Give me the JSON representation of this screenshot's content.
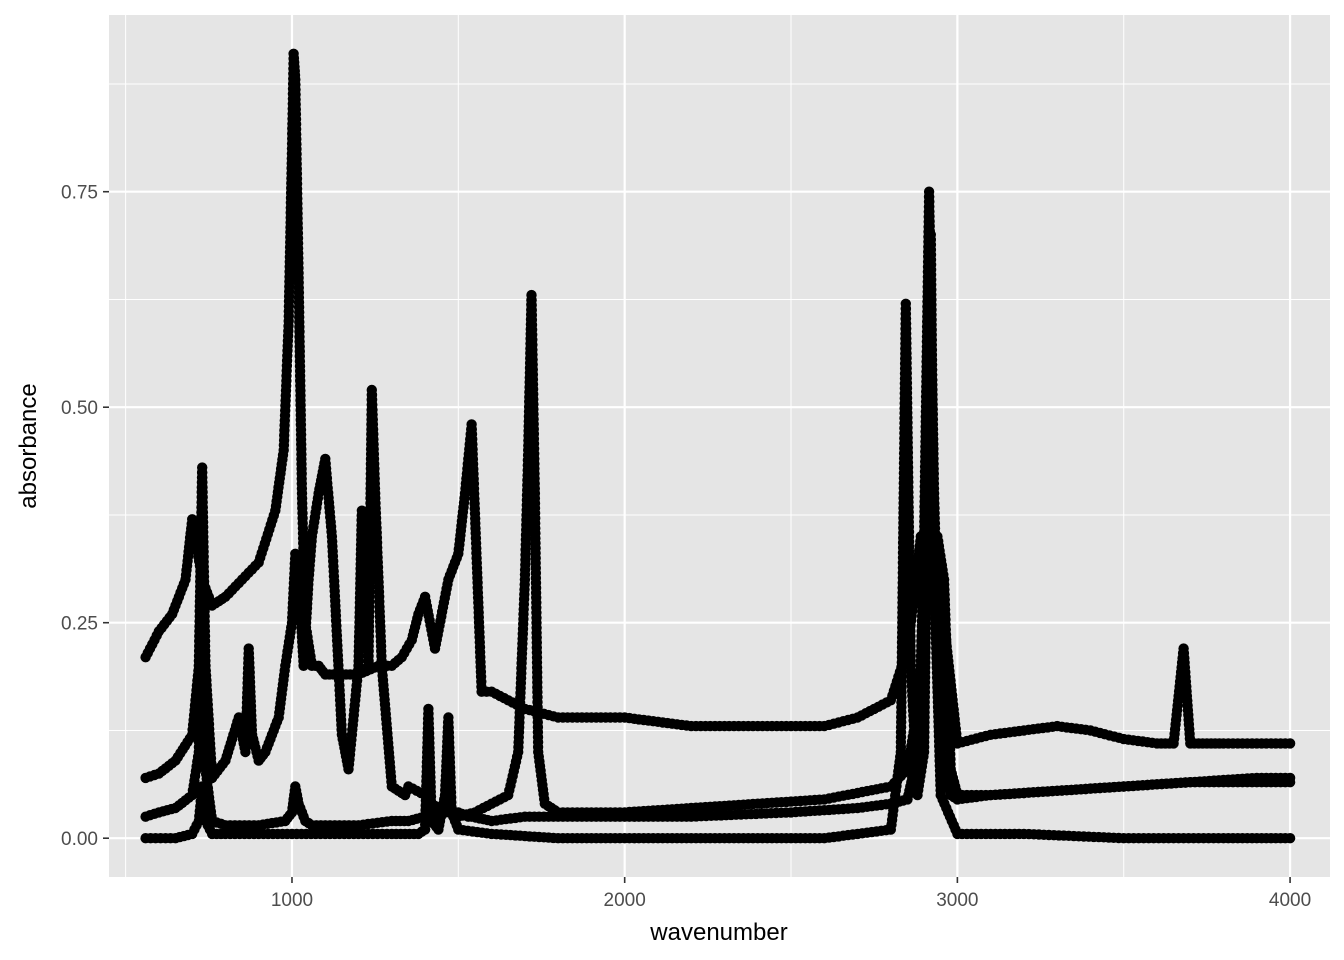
{
  "chart_data": {
    "type": "scatter",
    "title": "",
    "xlabel": "wavenumber",
    "ylabel": "absorbance",
    "xlim": [
      450,
      4120
    ],
    "ylim": [
      -0.045,
      0.955
    ],
    "x_ticks": [
      1000,
      2000,
      3000,
      4000
    ],
    "x_tick_labels": [
      "1000",
      "2000",
      "3000",
      "4000"
    ],
    "y_ticks": [
      0.0,
      0.25,
      0.5,
      0.75
    ],
    "y_tick_labels": [
      "0.00",
      "0.25",
      "0.50",
      "0.75"
    ],
    "grid": true,
    "legend": "none",
    "panel_color": "#e5e5e5",
    "grid_color": "#ffffff",
    "point_color": "#000000",
    "series": [
      {
        "x": [
          560,
          600,
          640,
          680,
          700,
          730,
          760,
          800,
          850,
          900,
          950,
          975,
          990,
          1000,
          1005,
          1010,
          1020,
          1030,
          1040,
          1060,
          1080,
          1100,
          1150,
          1200,
          1260,
          1300,
          1330,
          1345,
          1360,
          1380,
          1400,
          1430,
          1470,
          1500,
          1520,
          1540,
          1570,
          1600,
          1700,
          1800,
          1900,
          2000,
          2200,
          2400,
          2600,
          2700,
          2750,
          2800,
          2850,
          2870,
          2890,
          2920,
          2960,
          3000,
          3100,
          3200,
          3300,
          3400,
          3500,
          3600,
          3650,
          3680,
          3700,
          3750,
          3800,
          3900,
          4000
        ],
        "y": [
          0.21,
          0.24,
          0.26,
          0.3,
          0.37,
          0.3,
          0.27,
          0.28,
          0.3,
          0.32,
          0.38,
          0.45,
          0.6,
          0.8,
          0.91,
          0.88,
          0.65,
          0.4,
          0.25,
          0.2,
          0.2,
          0.19,
          0.19,
          0.19,
          0.2,
          0.2,
          0.21,
          0.22,
          0.23,
          0.26,
          0.28,
          0.22,
          0.3,
          0.33,
          0.4,
          0.48,
          0.17,
          0.17,
          0.15,
          0.14,
          0.14,
          0.14,
          0.13,
          0.13,
          0.13,
          0.14,
          0.15,
          0.16,
          0.22,
          0.28,
          0.35,
          0.32,
          0.25,
          0.11,
          0.12,
          0.125,
          0.13,
          0.125,
          0.115,
          0.11,
          0.11,
          0.22,
          0.11,
          0.11,
          0.11,
          0.11,
          0.11
        ]
      },
      {
        "x": [
          560,
          600,
          650,
          700,
          720,
          730,
          740,
          760,
          800,
          840,
          860,
          870,
          880,
          900,
          920,
          960,
          980,
          1000,
          1010,
          1020,
          1035,
          1050,
          1060,
          1080,
          1100,
          1120,
          1150,
          1170,
          1200,
          1210,
          1230,
          1240,
          1250,
          1270,
          1300,
          1340,
          1350,
          1400,
          1420,
          1460,
          1500,
          1530,
          1540,
          1600,
          1700,
          1800,
          2000,
          2200,
          2500,
          2700,
          2800,
          2850,
          2870,
          2890,
          2900,
          2915,
          2930,
          2950,
          2980,
          3000,
          3100,
          3300,
          3500,
          3700,
          3900,
          4000
        ],
        "y": [
          0.07,
          0.075,
          0.09,
          0.12,
          0.2,
          0.43,
          0.2,
          0.07,
          0.09,
          0.14,
          0.1,
          0.22,
          0.12,
          0.09,
          0.1,
          0.14,
          0.2,
          0.25,
          0.33,
          0.3,
          0.2,
          0.3,
          0.35,
          0.4,
          0.44,
          0.35,
          0.12,
          0.08,
          0.2,
          0.38,
          0.2,
          0.52,
          0.4,
          0.2,
          0.06,
          0.05,
          0.06,
          0.05,
          0.04,
          0.03,
          0.03,
          0.025,
          0.025,
          0.02,
          0.025,
          0.025,
          0.025,
          0.025,
          0.03,
          0.035,
          0.04,
          0.045,
          0.08,
          0.2,
          0.35,
          0.75,
          0.4,
          0.1,
          0.05,
          0.045,
          0.05,
          0.055,
          0.06,
          0.065,
          0.065,
          0.065
        ]
      },
      {
        "x": [
          560,
          600,
          650,
          700,
          720,
          730,
          740,
          760,
          800,
          900,
          980,
          1000,
          1010,
          1020,
          1040,
          1060,
          1100,
          1200,
          1300,
          1350,
          1400,
          1420,
          1440,
          1460,
          1480,
          1500,
          1550,
          1600,
          1650,
          1680,
          1700,
          1710,
          1720,
          1730,
          1740,
          1760,
          1800,
          1900,
          2000,
          2200,
          2400,
          2600,
          2800,
          2850,
          2880,
          2900,
          2920,
          2940,
          2960,
          2980,
          3000,
          3100,
          3300,
          3500,
          3700,
          3900,
          4000
        ],
        "y": [
          0.025,
          0.03,
          0.035,
          0.05,
          0.1,
          0.29,
          0.08,
          0.02,
          0.015,
          0.015,
          0.02,
          0.03,
          0.06,
          0.04,
          0.02,
          0.015,
          0.015,
          0.015,
          0.02,
          0.02,
          0.025,
          0.02,
          0.03,
          0.04,
          0.03,
          0.025,
          0.03,
          0.04,
          0.05,
          0.1,
          0.3,
          0.45,
          0.63,
          0.4,
          0.1,
          0.04,
          0.03,
          0.03,
          0.03,
          0.035,
          0.04,
          0.045,
          0.06,
          0.08,
          0.15,
          0.25,
          0.33,
          0.35,
          0.3,
          0.08,
          0.05,
          0.05,
          0.055,
          0.06,
          0.065,
          0.07,
          0.07
        ]
      },
      {
        "x": [
          560,
          650,
          700,
          720,
          730,
          740,
          760,
          800,
          900,
          1000,
          1100,
          1200,
          1300,
          1380,
          1400,
          1410,
          1420,
          1440,
          1460,
          1470,
          1480,
          1500,
          1600,
          1800,
          2000,
          2200,
          2400,
          2600,
          2800,
          2830,
          2845,
          2860,
          2880,
          2900,
          2910,
          2920,
          2930,
          2950,
          3000,
          3200,
          3500,
          3800,
          4000
        ],
        "y": [
          0.0,
          0.0,
          0.005,
          0.02,
          0.06,
          0.02,
          0.005,
          0.005,
          0.005,
          0.005,
          0.005,
          0.005,
          0.005,
          0.005,
          0.01,
          0.15,
          0.02,
          0.01,
          0.05,
          0.14,
          0.03,
          0.01,
          0.005,
          0.0,
          0.0,
          0.0,
          0.0,
          0.0,
          0.01,
          0.1,
          0.62,
          0.2,
          0.05,
          0.1,
          0.4,
          0.7,
          0.3,
          0.05,
          0.005,
          0.005,
          0.0,
          0.0,
          0.0
        ]
      }
    ]
  }
}
